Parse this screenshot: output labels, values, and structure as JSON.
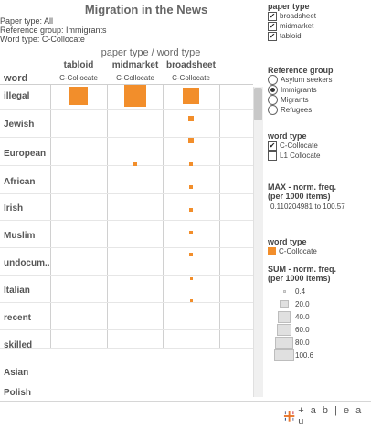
{
  "title": "Migration in the News",
  "meta": {
    "paper_type": "Paper type: All",
    "reference_group": "Reference group: Immigrants",
    "word_type": "Word type: C-Collocate"
  },
  "view": {
    "paper_word_header": "paper type  /  word type",
    "word_header": "word",
    "columns": [
      {
        "name": "tabloid",
        "sub": "C-Collocate"
      },
      {
        "name": "midmarket",
        "sub": "C-Collocate"
      },
      {
        "name": "broadsheet",
        "sub": "C-Collocate"
      }
    ],
    "rows": [
      "illegal",
      "Jewish",
      "European",
      "African",
      "Irish",
      "Muslim",
      "undocum..",
      "Italian",
      "recent",
      "skilled",
      "Asian",
      "Polish"
    ]
  },
  "chart_data": {
    "type": "table",
    "measure": "SUM - norm. freq. (per 1000 items)",
    "columns": [
      "tabloid",
      "midmarket",
      "broadsheet"
    ],
    "rows": [
      "illegal",
      "Jewish",
      "European",
      "African",
      "Irish",
      "Muslim",
      "undocum..",
      "Italian",
      "recent",
      "skilled",
      "Asian",
      "Polish"
    ],
    "values": [
      [
        70,
        100.6,
        55
      ],
      [
        null,
        null,
        6
      ],
      [
        null,
        null,
        5
      ],
      [
        null,
        3,
        4
      ],
      [
        null,
        null,
        3
      ],
      [
        null,
        null,
        3
      ],
      [
        null,
        null,
        2
      ],
      [
        null,
        null,
        2
      ],
      [
        null,
        null,
        1
      ],
      [
        null,
        null,
        1
      ],
      [
        null,
        null,
        null
      ],
      [
        null,
        null,
        null
      ]
    ],
    "mark_color": "#f28e2b"
  },
  "filters": {
    "paper_type": {
      "title": "paper type",
      "items": [
        {
          "label": "broadsheet",
          "checked": true
        },
        {
          "label": "midmarket",
          "checked": true
        },
        {
          "label": "tabloid",
          "checked": true
        }
      ]
    },
    "reference_group": {
      "title": "Reference group",
      "items": [
        {
          "label": "Asylum seekers",
          "selected": false
        },
        {
          "label": "Immigrants",
          "selected": true
        },
        {
          "label": "Migrants",
          "selected": false
        },
        {
          "label": "Refugees",
          "selected": false
        }
      ]
    },
    "word_type": {
      "title": "word type",
      "items": [
        {
          "label": "C-Collocate",
          "checked": true
        },
        {
          "label": "L1 Collocate",
          "checked": false
        }
      ]
    },
    "max_freq": {
      "title": "MAX - norm. freq.",
      "title2": "(per 1000 items)",
      "range": "0.110204981 to 100.57"
    }
  },
  "legend": {
    "color_title": "word type",
    "color_item": "C-Collocate",
    "color": "#f28e2b",
    "size_title": "SUM - norm. freq.",
    "size_title2": "(per 1000 items)",
    "sizes": [
      "0.4",
      "20.0",
      "40.0",
      "60.0",
      "80.0",
      "100.6"
    ]
  },
  "footer": {
    "logo_text": "+ a b | e a u"
  }
}
